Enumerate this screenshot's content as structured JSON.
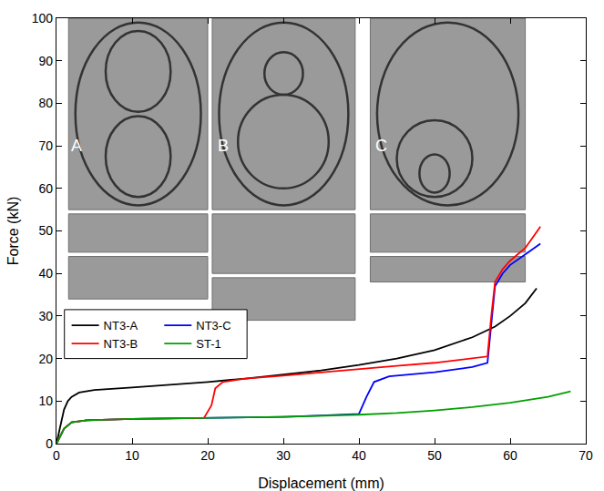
{
  "chart_data": {
    "type": "line",
    "x_label": "Displacement (mm)",
    "y_label": "Force (kN)",
    "xlim": [
      0,
      70
    ],
    "xticks": [
      0,
      10,
      20,
      30,
      40,
      50,
      60,
      70
    ],
    "ylim": [
      0,
      100
    ],
    "yticks": [
      0,
      10,
      20,
      30,
      40,
      50,
      60,
      70,
      80,
      90,
      100
    ],
    "grid": false,
    "legend": "left",
    "series": [
      {
        "name": "NT3-A",
        "color": "#000000",
        "x": [
          0,
          0.5,
          1,
          1.5,
          2,
          3,
          5,
          10,
          15,
          20,
          25,
          30,
          35,
          40,
          45,
          50,
          55,
          58,
          60,
          62,
          63.5
        ],
        "values": [
          0,
          4,
          8,
          10,
          11,
          12,
          12.6,
          13.2,
          13.8,
          14.5,
          15.3,
          16.2,
          17.2,
          18.5,
          20,
          22,
          25,
          27.5,
          30,
          33,
          36.5
        ]
      },
      {
        "name": "NT3-C",
        "color": "#0000ff",
        "x": [
          0,
          1,
          2,
          4,
          10,
          20,
          30,
          35,
          40,
          41,
          42,
          44,
          50,
          55,
          57,
          57.5,
          58,
          59,
          60,
          62,
          64
        ],
        "values": [
          0,
          3.5,
          5,
          5.5,
          5.8,
          6,
          6.3,
          6.6,
          7,
          11,
          14.5,
          15.8,
          16.8,
          18,
          19,
          28,
          37,
          40,
          42,
          44.5,
          47
        ]
      },
      {
        "name": "NT3-B",
        "color": "#ff0000",
        "x": [
          0,
          1,
          2,
          4,
          10,
          15,
          19.5,
          20.5,
          21,
          22,
          25,
          30,
          35,
          40,
          45,
          50,
          55,
          57,
          57.5,
          58,
          59,
          60,
          62,
          64
        ],
        "values": [
          0,
          3.5,
          5,
          5.5,
          5.8,
          5.9,
          6,
          9,
          13,
          14.5,
          15.3,
          16,
          16.8,
          17.5,
          18.3,
          19,
          20,
          20.5,
          30,
          38,
          41,
          43,
          46,
          51
        ]
      },
      {
        "name": "ST-1",
        "color": "#00a000",
        "x": [
          0,
          1,
          2,
          4,
          10,
          20,
          30,
          40,
          45,
          50,
          55,
          60,
          65,
          68
        ],
        "values": [
          0,
          3.5,
          5,
          5.5,
          5.8,
          6,
          6.3,
          6.8,
          7.2,
          7.8,
          8.6,
          9.6,
          11,
          12.3
        ]
      }
    ],
    "annotations": [
      {
        "text": "A",
        "x": 2.6,
        "y": 70
      },
      {
        "text": "B",
        "x": 22,
        "y": 70
      },
      {
        "text": "C",
        "x": 43,
        "y": 70
      }
    ]
  }
}
